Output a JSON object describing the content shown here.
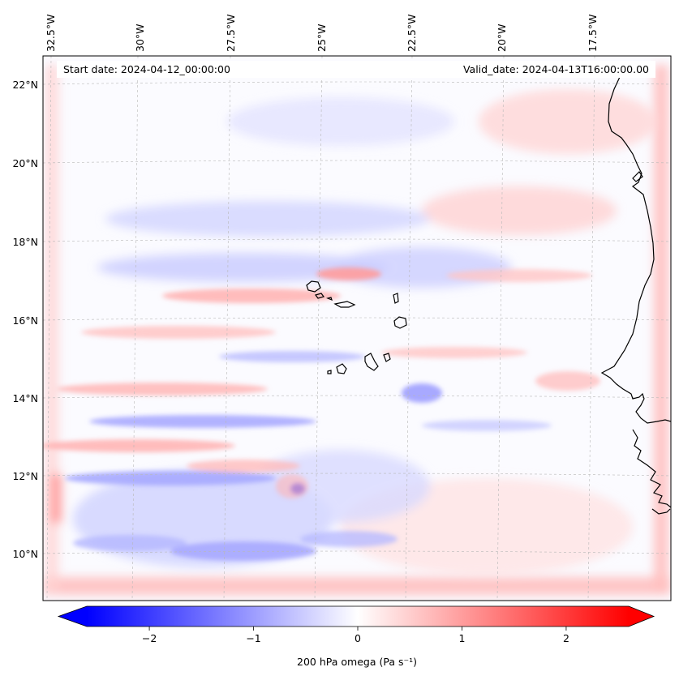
{
  "map": {
    "start_label": "Start date: 2024-04-12_00:00:00",
    "valid_label": "Valid_date: 2024-04-13T16:00:00.00",
    "lon_labels": [
      "32.5°W",
      "30°W",
      "27.5°W",
      "25°W",
      "22.5°W",
      "20°W",
      "17.5°W"
    ],
    "lat_labels": [
      "22°N",
      "20°N",
      "18°N",
      "16°N",
      "14°N",
      "12°N",
      "10°N"
    ],
    "field_colors": {
      "negative": "#0000ff",
      "zero": "#ffffff",
      "positive": "#ff0000"
    },
    "features": [
      "west-african-coastline",
      "cape-verde-islands"
    ]
  },
  "colorbar": {
    "label": "200 hPa omega (Pa s⁻¹)",
    "ticks": [
      "−2",
      "−1",
      "0",
      "1",
      "2"
    ],
    "range": [
      -2.6,
      2.6
    ],
    "tick_values": [
      -2,
      -1,
      0,
      1,
      2
    ],
    "extend": "both",
    "colormap": "bwr"
  }
}
